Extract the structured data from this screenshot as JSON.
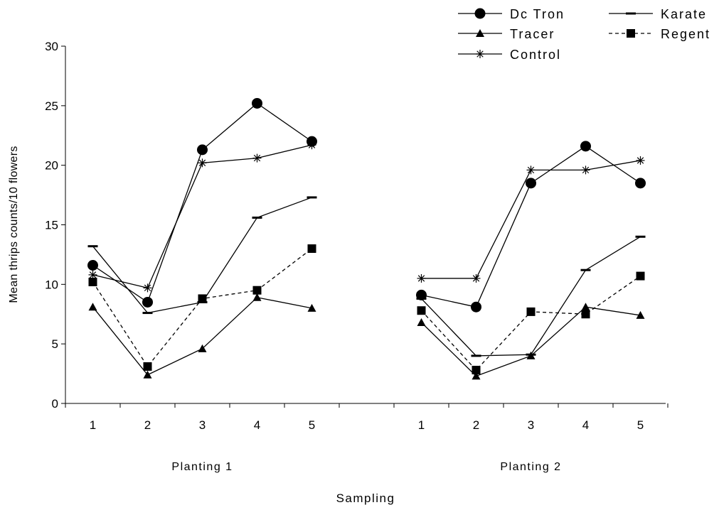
{
  "chart_data": {
    "type": "line",
    "title": "",
    "ylabel": "Mean thrips counts/10 flowers",
    "xlabel": "Sampling",
    "ylim": [
      0,
      30
    ],
    "yticks": [
      0,
      5,
      10,
      15,
      20,
      25,
      30
    ],
    "groups": [
      {
        "label": "Planting 1",
        "categories": [
          "1",
          "2",
          "3",
          "4",
          "5"
        ]
      },
      {
        "label": "Planting 2",
        "categories": [
          "1",
          "2",
          "3",
          "4",
          "5"
        ]
      }
    ],
    "legend_position": "top-right",
    "grid": false,
    "series": [
      {
        "name": "Dc Tron",
        "marker": "circle",
        "dash": "solid",
        "values": [
          [
            11.6,
            8.5,
            21.3,
            25.2,
            22.0
          ],
          [
            9.1,
            8.1,
            18.5,
            21.6,
            18.5
          ]
        ]
      },
      {
        "name": "Karate",
        "marker": "dash",
        "dash": "solid",
        "values": [
          [
            13.2,
            7.6,
            8.5,
            15.6,
            17.3
          ],
          [
            8.8,
            4.0,
            4.1,
            11.2,
            14.0
          ]
        ]
      },
      {
        "name": "Tracer",
        "marker": "triangle",
        "dash": "solid",
        "values": [
          [
            8.1,
            2.4,
            4.6,
            8.9,
            8.0
          ],
          [
            6.8,
            2.3,
            4.0,
            8.1,
            7.4
          ]
        ]
      },
      {
        "name": "Regent",
        "marker": "square",
        "dash": "dashed",
        "values": [
          [
            10.2,
            3.1,
            8.8,
            9.5,
            13.0
          ],
          [
            7.8,
            2.8,
            7.7,
            7.5,
            10.7
          ]
        ]
      },
      {
        "name": "Control",
        "marker": "star",
        "dash": "solid",
        "values": [
          [
            10.8,
            9.7,
            20.2,
            20.6,
            21.7
          ],
          [
            10.5,
            10.5,
            19.6,
            19.6,
            20.4
          ]
        ]
      }
    ]
  }
}
